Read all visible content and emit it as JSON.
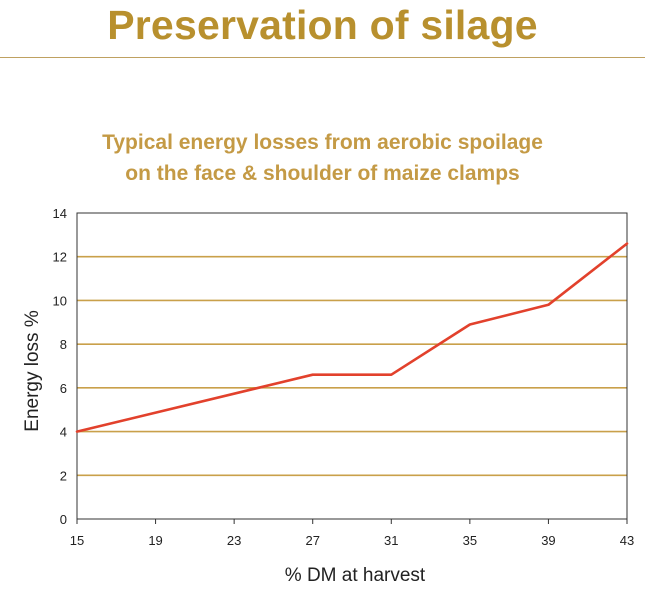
{
  "page": {
    "title": "Preservation of silage"
  },
  "colors": {
    "title_gold": "#B8902E",
    "subtitle_gold": "#C49A45",
    "gridline_gold": "#C9A04A",
    "line_red": "#E2412C"
  },
  "chart_data": {
    "type": "line",
    "title_lines": [
      "Typical energy losses from aerobic spoilage",
      "on the face & shoulder of maize clamps"
    ],
    "xlabel": "% DM at harvest",
    "ylabel": "Energy loss %",
    "x_ticks": [
      15,
      19,
      23,
      27,
      31,
      35,
      39,
      43
    ],
    "y_ticks": [
      0,
      2,
      4,
      6,
      8,
      10,
      12,
      14
    ],
    "xlim": [
      15,
      43
    ],
    "ylim": [
      0,
      14
    ],
    "grid": "horizontal",
    "series": [
      {
        "x": [
          15,
          27,
          31,
          35,
          39,
          43
        ],
        "y": [
          4.0,
          6.6,
          6.6,
          8.9,
          9.8,
          12.6
        ]
      }
    ]
  }
}
